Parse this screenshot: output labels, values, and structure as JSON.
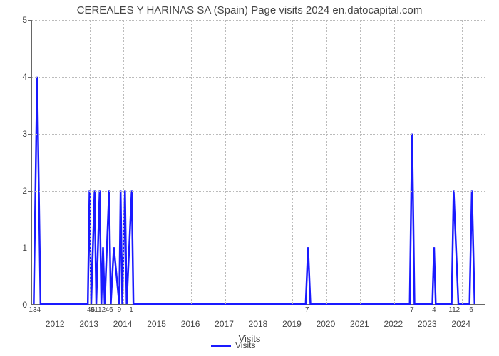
{
  "chart": {
    "type": "line",
    "title": "CEREALES Y HARINAS SA (Spain) Page visits 2024 en.datocapital.com",
    "title_fontsize": 15,
    "title_color": "#444444",
    "xlabel": "Visits",
    "label_fontsize": 13,
    "legend_label": "Visits",
    "line_color": "#1a1aff",
    "line_width": 2.5,
    "background_color": "#ffffff",
    "grid_color": "#bbbbbb",
    "axis_color": "#666666",
    "text_color": "#444444",
    "ylim": [
      0,
      5
    ],
    "yticks": [
      0,
      1,
      2,
      3,
      4,
      5
    ],
    "year_ticks": [
      2012,
      2013,
      2014,
      2015,
      2016,
      2017,
      2018,
      2019,
      2020,
      2021,
      2022,
      2023,
      2024
    ],
    "year_range": [
      2011.3,
      2024.7
    ],
    "small_x_labels": [
      {
        "x": 2011.4,
        "text": "134"
      },
      {
        "x": 2013.0,
        "text": "4"
      },
      {
        "x": 2013.12,
        "text": "6"
      },
      {
        "x": 2013.27,
        "text": "8112"
      },
      {
        "x": 2013.6,
        "text": "46"
      },
      {
        "x": 2013.9,
        "text": "9"
      },
      {
        "x": 2014.25,
        "text": "1"
      },
      {
        "x": 2019.45,
        "text": "7"
      },
      {
        "x": 2022.55,
        "text": "7"
      },
      {
        "x": 2023.2,
        "text": "4"
      },
      {
        "x": 2023.8,
        "text": "112"
      },
      {
        "x": 2024.3,
        "text": "6"
      }
    ],
    "series": [
      {
        "x": 2011.35,
        "y": 0
      },
      {
        "x": 2011.45,
        "y": 4
      },
      {
        "x": 2011.55,
        "y": 0
      },
      {
        "x": 2012.95,
        "y": 0
      },
      {
        "x": 2013.0,
        "y": 2
      },
      {
        "x": 2013.05,
        "y": 0
      },
      {
        "x": 2013.15,
        "y": 2
      },
      {
        "x": 2013.2,
        "y": 0
      },
      {
        "x": 2013.3,
        "y": 2
      },
      {
        "x": 2013.35,
        "y": 0
      },
      {
        "x": 2013.4,
        "y": 1
      },
      {
        "x": 2013.45,
        "y": 0
      },
      {
        "x": 2013.58,
        "y": 2
      },
      {
        "x": 2013.63,
        "y": 0
      },
      {
        "x": 2013.72,
        "y": 1
      },
      {
        "x": 2013.88,
        "y": 0
      },
      {
        "x": 2013.92,
        "y": 2
      },
      {
        "x": 2013.97,
        "y": 0
      },
      {
        "x": 2014.05,
        "y": 2
      },
      {
        "x": 2014.1,
        "y": 0
      },
      {
        "x": 2014.25,
        "y": 2
      },
      {
        "x": 2014.3,
        "y": 0
      },
      {
        "x": 2019.4,
        "y": 0
      },
      {
        "x": 2019.47,
        "y": 1
      },
      {
        "x": 2019.54,
        "y": 0
      },
      {
        "x": 2022.48,
        "y": 0
      },
      {
        "x": 2022.55,
        "y": 3
      },
      {
        "x": 2022.62,
        "y": 0
      },
      {
        "x": 2023.15,
        "y": 0
      },
      {
        "x": 2023.2,
        "y": 1
      },
      {
        "x": 2023.25,
        "y": 0
      },
      {
        "x": 2023.72,
        "y": 0
      },
      {
        "x": 2023.78,
        "y": 2
      },
      {
        "x": 2023.85,
        "y": 1
      },
      {
        "x": 2023.92,
        "y": 0
      },
      {
        "x": 2024.25,
        "y": 0
      },
      {
        "x": 2024.32,
        "y": 2
      },
      {
        "x": 2024.4,
        "y": 0
      }
    ]
  }
}
